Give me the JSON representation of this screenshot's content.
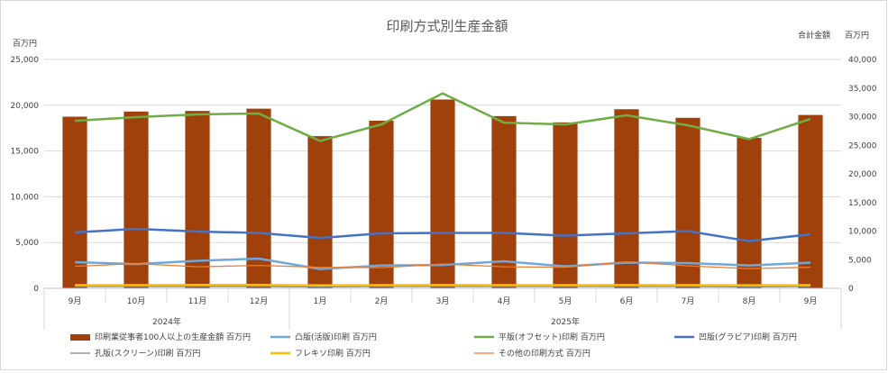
{
  "chart_data": {
    "type": "bar+line",
    "title": "印刷方式別生産金額",
    "left_axis": {
      "unit": "百万円",
      "ylim": [
        0,
        25000
      ],
      "ticks": [
        "0",
        "5,000",
        "10,000",
        "15,000",
        "20,000",
        "25,000"
      ]
    },
    "right_axis": {
      "unit_label": "合計金額",
      "unit": "百万円",
      "ylim": [
        0,
        40000
      ],
      "ticks": [
        "0",
        "5,000",
        "10,000",
        "15,000",
        "20,000",
        "25,000",
        "30,000",
        "35,000",
        "40,000"
      ]
    },
    "categories": [
      "9月",
      "10月",
      "11月",
      "12月",
      "1月",
      "2月",
      "3月",
      "4月",
      "5月",
      "6月",
      "7月",
      "8月",
      "9月"
    ],
    "year_groups": [
      {
        "label": "2024年",
        "start": 0,
        "end": 3
      },
      {
        "label": "2025年",
        "start": 4,
        "end": 12
      }
    ],
    "series": [
      {
        "name": "印刷業従事者100人以上の生産金額 百万円",
        "type": "bar",
        "axis": "right",
        "color": "#a0400b",
        "values": [
          30000,
          30900,
          31000,
          31400,
          26600,
          29300,
          33000,
          30100,
          29000,
          31300,
          29800,
          26300,
          30300
        ]
      },
      {
        "name": "凸版(活版)印刷 百万円",
        "type": "line",
        "axis": "left",
        "color": "#6fa8dc",
        "values": [
          2850,
          2650,
          3000,
          3250,
          2100,
          2500,
          2550,
          2950,
          2400,
          2800,
          2750,
          2500,
          2800
        ]
      },
      {
        "name": "平版(オフセット)印刷 百万円",
        "type": "line",
        "axis": "left",
        "color": "#70ad47",
        "values": [
          18300,
          18700,
          19000,
          19100,
          16100,
          17900,
          21300,
          18100,
          17900,
          18900,
          17800,
          16300,
          18500
        ]
      },
      {
        "name": "凹版(グラビア)印刷 百万円",
        "type": "line",
        "axis": "left",
        "color": "#4472c4",
        "values": [
          6100,
          6500,
          6200,
          6050,
          5500,
          6000,
          6050,
          6050,
          5750,
          6000,
          6250,
          5150,
          5900
        ]
      },
      {
        "name": "孔版(スクリーン)印刷 百万円",
        "type": "line",
        "axis": "left",
        "color": "#7f7f7f",
        "values": [
          200,
          200,
          200,
          200,
          150,
          200,
          200,
          200,
          200,
          200,
          200,
          150,
          200
        ]
      },
      {
        "name": "フレキソ印刷 百万円",
        "type": "line",
        "axis": "left",
        "color": "#ffc000",
        "values": [
          350,
          350,
          370,
          370,
          320,
          350,
          360,
          350,
          340,
          360,
          350,
          330,
          350
        ]
      },
      {
        "name": "その他の印刷方式 百万円",
        "type": "line",
        "axis": "left",
        "color": "#ed7d31",
        "values": [
          2400,
          2700,
          2350,
          2500,
          2300,
          2250,
          2650,
          2350,
          2300,
          2900,
          2450,
          2150,
          2300
        ]
      }
    ],
    "grid": true,
    "legend_position": "bottom"
  }
}
